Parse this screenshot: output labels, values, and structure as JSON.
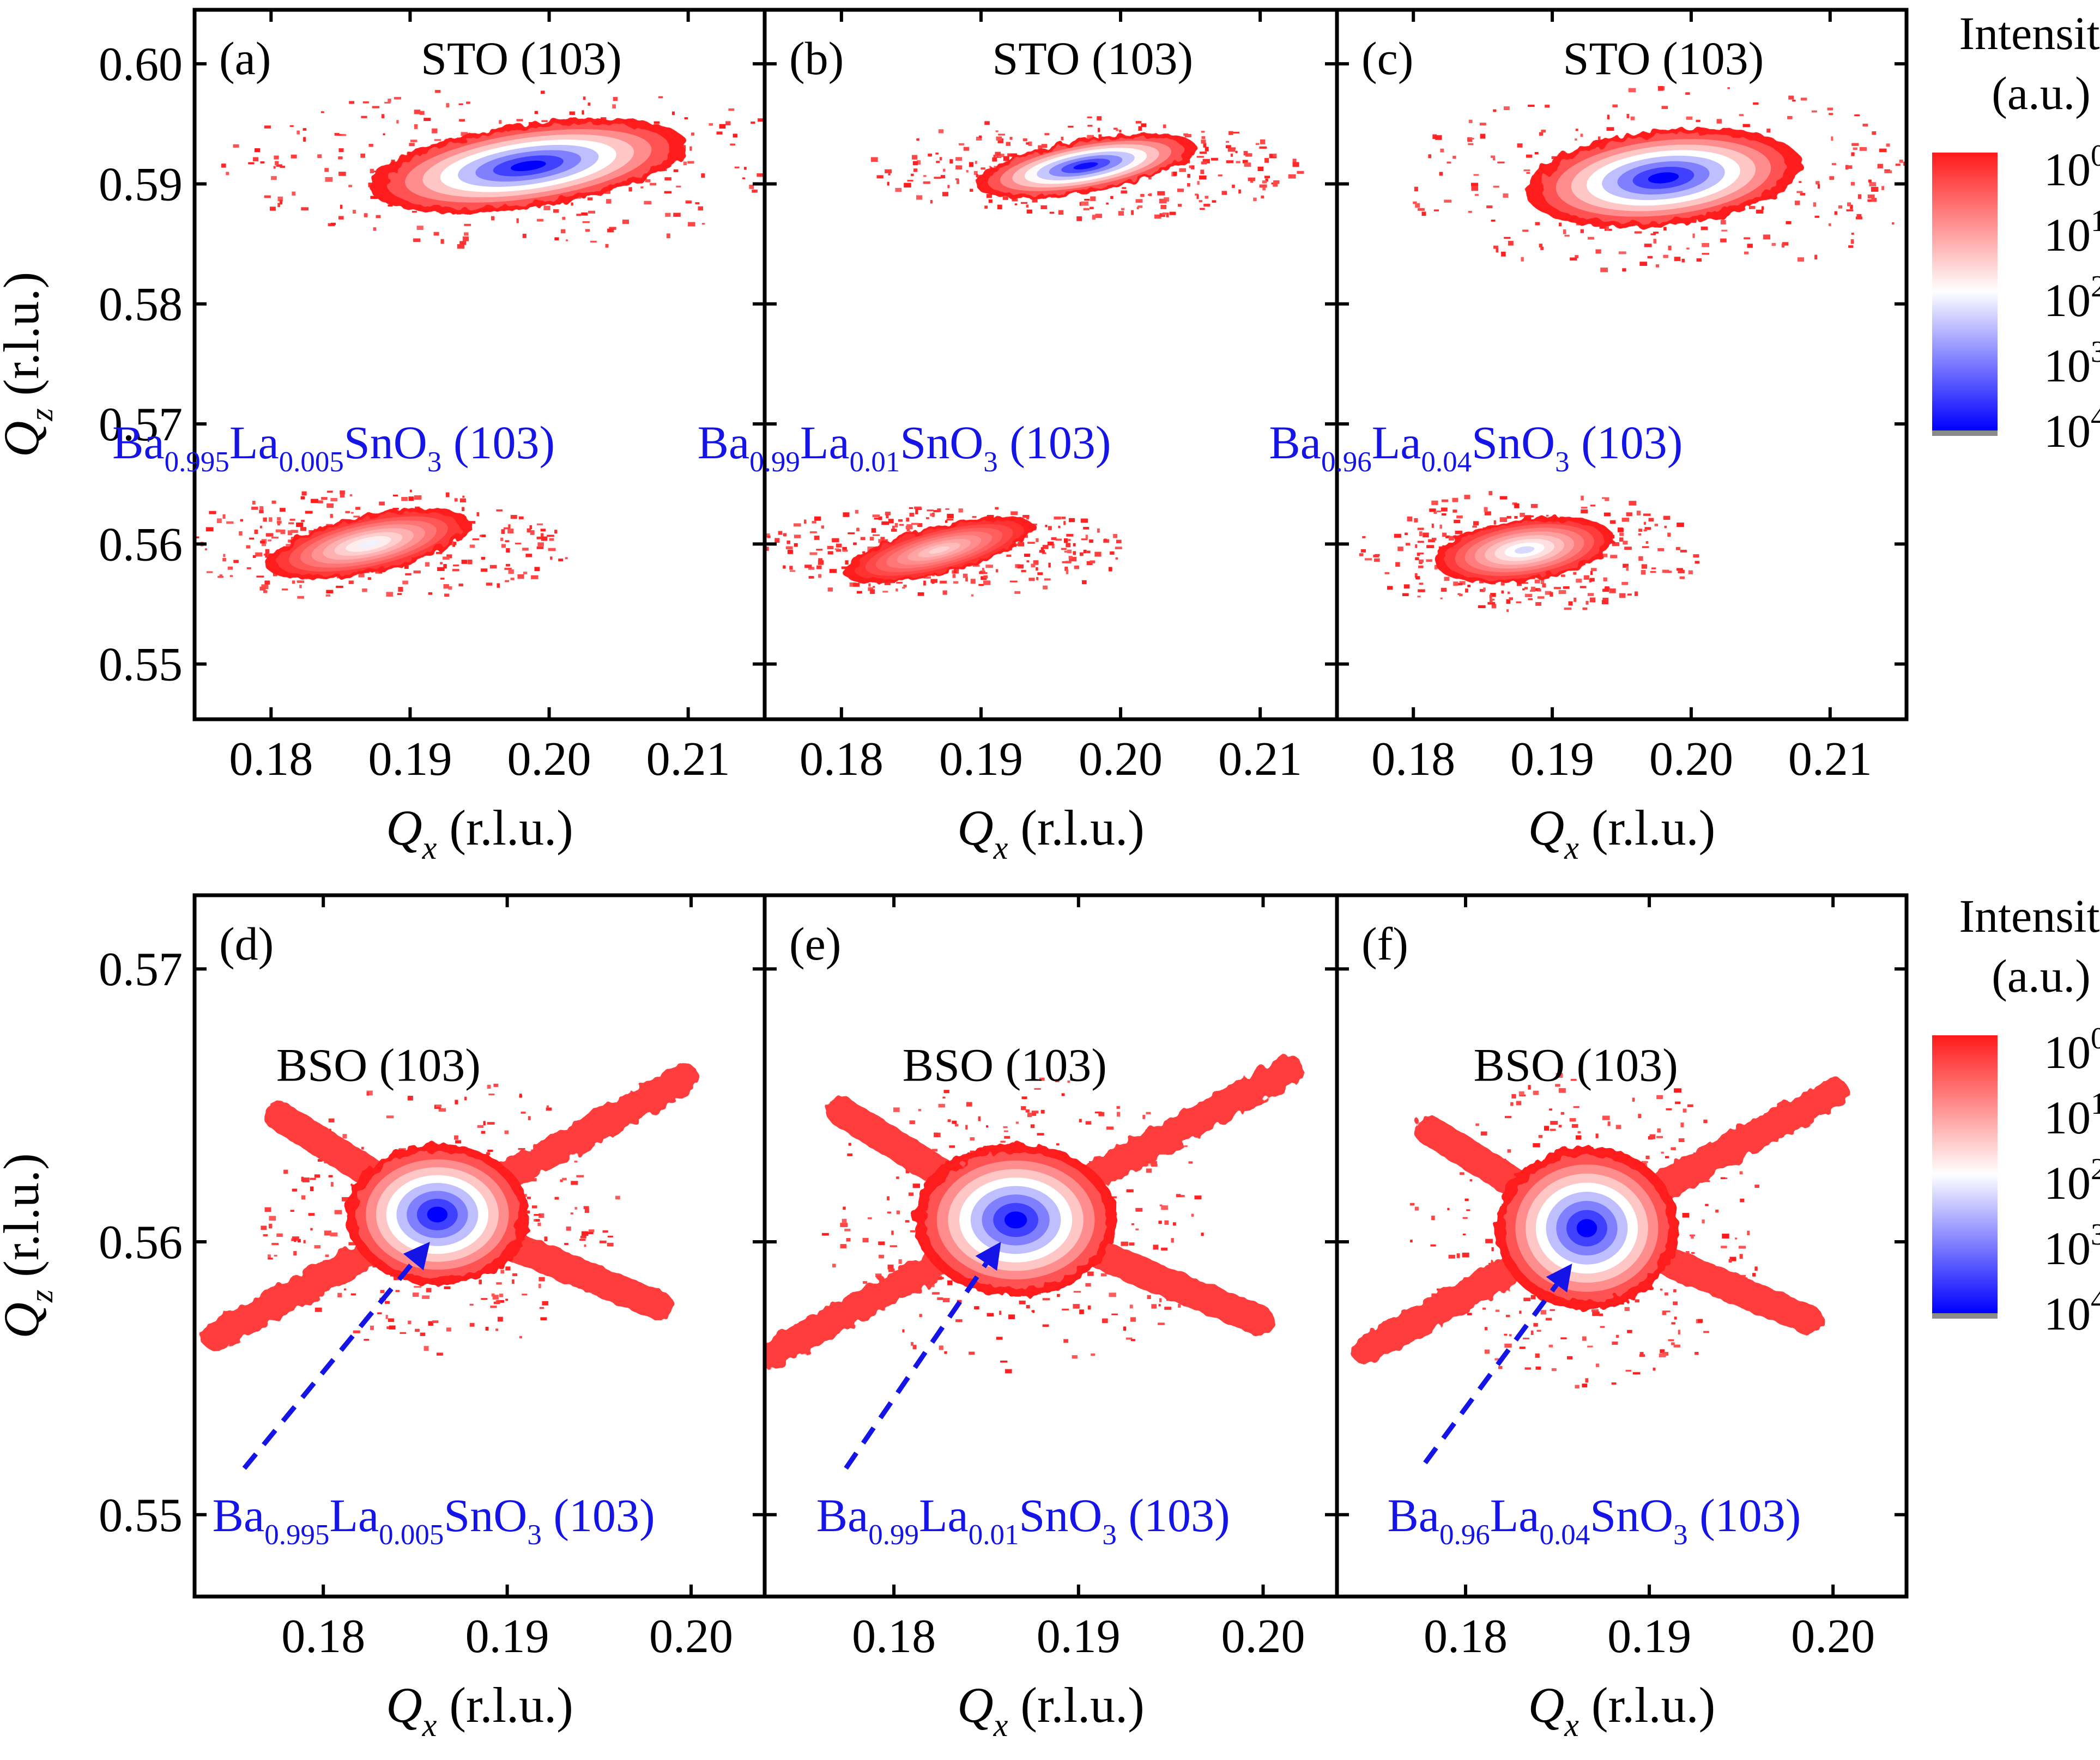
{
  "figure": {
    "colorbar_title_line1": "Intensity",
    "colorbar_title_line2": "(a.u.)",
    "colorbar_ticks": [
      {
        "base": "10",
        "exp": "0"
      },
      {
        "base": "10",
        "exp": "1"
      },
      {
        "base": "10",
        "exp": "2"
      },
      {
        "base": "10",
        "exp": "3"
      },
      {
        "base": "10",
        "exp": "4"
      }
    ],
    "colorbar_colors": [
      "#ff1a1a",
      "#ffffff",
      "#0000ff"
    ],
    "x_label_var": "Q",
    "x_label_sub": "x",
    "y_label_var": "Q",
    "y_label_sub": "z",
    "axis_unit": " (r.l.u.)",
    "film_color": "#1414e6",
    "substrate_color": "#ff2020"
  },
  "chart_data": [
    {
      "type": "heatmap",
      "row": 0,
      "col": 0,
      "panel_label": "(a)",
      "xlim": [
        0.1745,
        0.2155
      ],
      "ylim": [
        0.5454,
        0.6045
      ],
      "xticks": [
        0.18,
        0.19,
        0.2,
        0.21
      ],
      "xtick_labels": [
        "0.18",
        "0.19",
        "0.20",
        "0.21"
      ],
      "yticks": [
        0.55,
        0.56,
        0.57,
        0.58,
        0.59,
        0.6
      ],
      "ytick_labels": [
        "0.55",
        "0.56",
        "0.57",
        "0.58",
        "0.59",
        "0.60"
      ],
      "peak_label": "STO (103)",
      "peak_label_pos": [
        0.198,
        0.6005
      ],
      "film_label": {
        "parts": [
          {
            "t": "Ba"
          },
          {
            "t": "0.995",
            "sub": true
          },
          {
            "t": "La"
          },
          {
            "t": "0.005",
            "sub": true
          },
          {
            "t": "SnO"
          },
          {
            "t": "3",
            "sub": true
          },
          {
            "t": " (103)"
          }
        ],
        "pos": [
          0.1845,
          0.5685
        ]
      },
      "arrow": null,
      "peaks": [
        {
          "qx": 0.1985,
          "qz": 0.5915,
          "rx": 0.0115,
          "rz": 0.0035,
          "angle": -8,
          "max_log": 4.0
        },
        {
          "qx": 0.187,
          "qz": 0.56,
          "rx": 0.0075,
          "rz": 0.0024,
          "angle": -12,
          "max_log": 2.1
        }
      ]
    },
    {
      "type": "heatmap",
      "row": 0,
      "col": 1,
      "panel_label": "(b)",
      "xlim": [
        0.1745,
        0.2155
      ],
      "ylim": [
        0.5454,
        0.6045
      ],
      "xticks": [
        0.18,
        0.19,
        0.2,
        0.21
      ],
      "xtick_labels": [
        "0.18",
        "0.19",
        "0.20",
        "0.21"
      ],
      "yticks": [
        0.55,
        0.56,
        0.57,
        0.58,
        0.59,
        0.6
      ],
      "ytick_labels": [],
      "peak_label": "STO (103)",
      "peak_label_pos": [
        0.198,
        0.6005
      ],
      "film_label": {
        "parts": [
          {
            "t": "Ba"
          },
          {
            "t": "0.99",
            "sub": true
          },
          {
            "t": "La"
          },
          {
            "t": "0.01",
            "sub": true
          },
          {
            "t": "SnO"
          },
          {
            "t": "3",
            "sub": true
          },
          {
            "t": " (103)"
          }
        ],
        "pos": [
          0.1845,
          0.5685
        ]
      },
      "arrow": null,
      "peaks": [
        {
          "qx": 0.1975,
          "qz": 0.5915,
          "rx": 0.008,
          "rz": 0.0022,
          "angle": -10,
          "max_log": 3.9
        },
        {
          "qx": 0.187,
          "qz": 0.5595,
          "rx": 0.007,
          "rz": 0.002,
          "angle": -14,
          "max_log": 1.6
        }
      ]
    },
    {
      "type": "heatmap",
      "row": 0,
      "col": 2,
      "panel_label": "(c)",
      "xlim": [
        0.1745,
        0.2155
      ],
      "ylim": [
        0.5454,
        0.6045
      ],
      "xticks": [
        0.18,
        0.19,
        0.2,
        0.21
      ],
      "xtick_labels": [
        "0.18",
        "0.19",
        "0.20",
        "0.21"
      ],
      "yticks": [
        0.55,
        0.56,
        0.57,
        0.58,
        0.59,
        0.6
      ],
      "ytick_labels": [],
      "peak_label": "STO (103)",
      "peak_label_pos": [
        0.198,
        0.6005
      ],
      "film_label": {
        "parts": [
          {
            "t": "Ba"
          },
          {
            "t": "0.96",
            "sub": true
          },
          {
            "t": "La"
          },
          {
            "t": "0.04",
            "sub": true
          },
          {
            "t": "SnO"
          },
          {
            "t": "3",
            "sub": true
          },
          {
            "t": " (103)"
          }
        ],
        "pos": [
          0.1845,
          0.5685
        ]
      },
      "arrow": null,
      "peaks": [
        {
          "qx": 0.198,
          "qz": 0.5905,
          "rx": 0.01,
          "rz": 0.004,
          "angle": -6,
          "max_log": 4.0
        },
        {
          "qx": 0.188,
          "qz": 0.5595,
          "rx": 0.0065,
          "rz": 0.0026,
          "angle": -8,
          "max_log": 2.3
        }
      ]
    },
    {
      "type": "heatmap",
      "row": 1,
      "col": 0,
      "panel_label": "(d)",
      "xlim": [
        0.173,
        0.204
      ],
      "ylim": [
        0.547,
        0.5727
      ],
      "xticks": [
        0.18,
        0.19,
        0.2
      ],
      "xtick_labels": [
        "0.18",
        "0.19",
        "0.20"
      ],
      "yticks": [
        0.55,
        0.56,
        0.57
      ],
      "ytick_labels": [
        "0.55",
        "0.56",
        "0.57"
      ],
      "peak_label": "BSO (103)",
      "peak_label_pos": [
        0.183,
        0.5665
      ],
      "film_label": {
        "parts": [
          {
            "t": "Ba"
          },
          {
            "t": "0.995",
            "sub": true
          },
          {
            "t": "La"
          },
          {
            "t": "0.005",
            "sub": true
          },
          {
            "t": "SnO"
          },
          {
            "t": "3",
            "sub": true
          },
          {
            "t": " (103)"
          }
        ],
        "pos": [
          0.186,
          0.55
        ]
      },
      "arrow": {
        "from": [
          0.1757,
          0.5517
        ],
        "to": [
          0.1858,
          0.56
        ]
      },
      "peaks": [
        {
          "qx": 0.1862,
          "qz": 0.561,
          "rx": 0.005,
          "rz": 0.0026,
          "angle": 0,
          "max_log": 4.0
        }
      ]
    },
    {
      "type": "heatmap",
      "row": 1,
      "col": 1,
      "panel_label": "(e)",
      "xlim": [
        0.173,
        0.204
      ],
      "ylim": [
        0.547,
        0.5727
      ],
      "xticks": [
        0.18,
        0.19,
        0.2
      ],
      "xtick_labels": [
        "0.18",
        "0.19",
        "0.20"
      ],
      "yticks": [
        0.55,
        0.56,
        0.57
      ],
      "ytick_labels": [],
      "peak_label": "BSO (103)",
      "peak_label_pos": [
        0.186,
        0.5665
      ],
      "film_label": {
        "parts": [
          {
            "t": "Ba"
          },
          {
            "t": "0.99",
            "sub": true
          },
          {
            "t": "La"
          },
          {
            "t": "0.01",
            "sub": true
          },
          {
            "t": "SnO"
          },
          {
            "t": "3",
            "sub": true
          },
          {
            "t": " (103)"
          }
        ],
        "pos": [
          0.187,
          0.55
        ]
      },
      "arrow": {
        "from": [
          0.1774,
          0.5517
        ],
        "to": [
          0.1858,
          0.56
        ]
      },
      "peaks": [
        {
          "qx": 0.1866,
          "qz": 0.5608,
          "rx": 0.0055,
          "rz": 0.0028,
          "angle": 0,
          "max_log": 4.0
        }
      ]
    },
    {
      "type": "heatmap",
      "row": 1,
      "col": 2,
      "panel_label": "(f)",
      "xlim": [
        0.173,
        0.204
      ],
      "ylim": [
        0.547,
        0.5727
      ],
      "xticks": [
        0.18,
        0.19,
        0.2
      ],
      "xtick_labels": [
        "0.18",
        "0.19",
        "0.20"
      ],
      "yticks": [
        0.55,
        0.56,
        0.57
      ],
      "ytick_labels": [],
      "peak_label": "BSO (103)",
      "peak_label_pos": [
        0.186,
        0.5665
      ],
      "film_label": {
        "parts": [
          {
            "t": "Ba"
          },
          {
            "t": "0.96",
            "sub": true
          },
          {
            "t": "La"
          },
          {
            "t": "0.04",
            "sub": true
          },
          {
            "t": "SnO"
          },
          {
            "t": "3",
            "sub": true
          },
          {
            "t": " (103)"
          }
        ],
        "pos": [
          0.187,
          0.55
        ]
      },
      "arrow": {
        "from": [
          0.1778,
          0.5519
        ],
        "to": [
          0.1858,
          0.5592
        ]
      },
      "peaks": [
        {
          "qx": 0.1866,
          "qz": 0.5605,
          "rx": 0.005,
          "rz": 0.003,
          "angle": 0,
          "max_log": 4.0
        }
      ]
    }
  ]
}
